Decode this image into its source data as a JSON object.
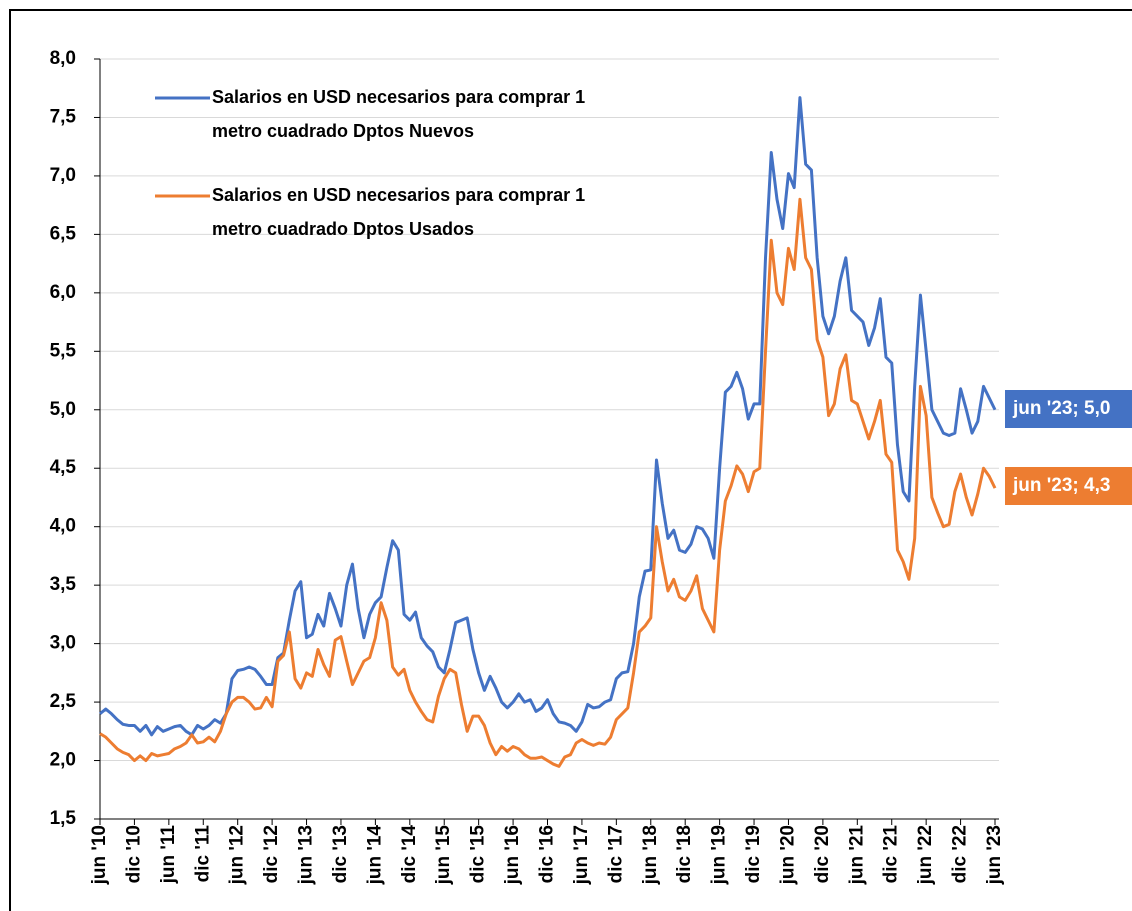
{
  "chart_data": {
    "type": "line",
    "categories": [
      "jun '10",
      null,
      null,
      null,
      null,
      null,
      "dic '10",
      null,
      null,
      null,
      null,
      null,
      "jun '11",
      null,
      null,
      null,
      null,
      null,
      "dic '11",
      null,
      null,
      null,
      null,
      null,
      "jun '12",
      null,
      null,
      null,
      null,
      null,
      "dic '12",
      null,
      null,
      null,
      null,
      null,
      "jun '13",
      null,
      null,
      null,
      null,
      null,
      "dic '13",
      null,
      null,
      null,
      null,
      null,
      "jun '14",
      null,
      null,
      null,
      null,
      null,
      "dic '14",
      null,
      null,
      null,
      null,
      null,
      "jun '15",
      null,
      null,
      null,
      null,
      null,
      "dic '15",
      null,
      null,
      null,
      null,
      null,
      "jun '16",
      null,
      null,
      null,
      null,
      null,
      "dic '16",
      null,
      null,
      null,
      null,
      null,
      "jun '17",
      null,
      null,
      null,
      null,
      null,
      "dic '17",
      null,
      null,
      null,
      null,
      null,
      "jun '18",
      null,
      null,
      null,
      null,
      null,
      "dic '18",
      null,
      null,
      null,
      null,
      null,
      "jun '19",
      null,
      null,
      null,
      null,
      null,
      "dic '19",
      null,
      null,
      null,
      null,
      null,
      "jun '20",
      null,
      null,
      null,
      null,
      null,
      "dic '20",
      null,
      null,
      null,
      null,
      null,
      "jun '21",
      null,
      null,
      null,
      null,
      null,
      "dic '21",
      null,
      null,
      null,
      null,
      null,
      "jun '22",
      null,
      null,
      null,
      null,
      null,
      "dic '22",
      null,
      null,
      null,
      null,
      null,
      "jun '23"
    ],
    "series": [
      {
        "name": "Salarios en USD necesarios para comprar 1 metro cuadrado Dptos Nuevos",
        "color": "#4472c4",
        "end_label": "jun '23; 5,0",
        "values": [
          2.4,
          2.44,
          2.4,
          2.35,
          2.31,
          2.3,
          2.3,
          2.25,
          2.3,
          2.22,
          2.29,
          2.25,
          2.27,
          2.29,
          2.3,
          2.25,
          2.22,
          2.3,
          2.27,
          2.3,
          2.35,
          2.32,
          2.4,
          2.7,
          2.77,
          2.78,
          2.8,
          2.78,
          2.72,
          2.65,
          2.65,
          2.88,
          2.92,
          3.2,
          3.45,
          3.53,
          3.05,
          3.08,
          3.25,
          3.15,
          3.43,
          3.3,
          3.15,
          3.5,
          3.68,
          3.3,
          3.05,
          3.25,
          3.35,
          3.4,
          3.65,
          3.88,
          3.8,
          3.25,
          3.2,
          3.27,
          3.05,
          2.98,
          2.93,
          2.8,
          2.75,
          2.95,
          3.18,
          3.2,
          3.22,
          2.95,
          2.75,
          2.6,
          2.72,
          2.62,
          2.5,
          2.45,
          2.5,
          2.57,
          2.5,
          2.52,
          2.42,
          2.45,
          2.52,
          2.4,
          2.33,
          2.32,
          2.3,
          2.25,
          2.33,
          2.48,
          2.45,
          2.46,
          2.5,
          2.52,
          2.7,
          2.75,
          2.76,
          3.0,
          3.4,
          3.62,
          3.63,
          4.57,
          4.2,
          3.9,
          3.97,
          3.8,
          3.78,
          3.85,
          4.0,
          3.98,
          3.9,
          3.73,
          4.5,
          5.15,
          5.2,
          5.32,
          5.18,
          4.92,
          5.05,
          5.05,
          6.3,
          7.2,
          6.8,
          6.55,
          7.02,
          6.9,
          7.67,
          7.1,
          7.05,
          6.3,
          5.8,
          5.65,
          5.8,
          6.1,
          6.3,
          5.85,
          5.8,
          5.75,
          5.55,
          5.7,
          5.95,
          5.45,
          5.4,
          4.7,
          4.3,
          4.22,
          5.2,
          5.98,
          5.5,
          5.0,
          4.9,
          4.8,
          4.78,
          4.8,
          5.18,
          5.0,
          4.8,
          4.9,
          5.2,
          5.1,
          5.0
        ]
      },
      {
        "name": "Salarios en USD necesarios para comprar 1 metro cuadrado Dptos Usados",
        "color": "#ed7d31",
        "end_label": "jun '23; 4,3",
        "values": [
          2.23,
          2.2,
          2.15,
          2.1,
          2.07,
          2.05,
          2.0,
          2.04,
          2.0,
          2.06,
          2.04,
          2.05,
          2.06,
          2.1,
          2.12,
          2.15,
          2.22,
          2.15,
          2.16,
          2.2,
          2.16,
          2.25,
          2.4,
          2.5,
          2.54,
          2.54,
          2.5,
          2.44,
          2.45,
          2.54,
          2.46,
          2.85,
          2.9,
          3.1,
          2.7,
          2.62,
          2.75,
          2.72,
          2.95,
          2.82,
          2.72,
          3.03,
          3.06,
          2.85,
          2.65,
          2.75,
          2.85,
          2.88,
          3.05,
          3.35,
          3.2,
          2.8,
          2.73,
          2.78,
          2.6,
          2.5,
          2.42,
          2.35,
          2.33,
          2.55,
          2.7,
          2.78,
          2.75,
          2.48,
          2.25,
          2.38,
          2.38,
          2.3,
          2.15,
          2.05,
          2.12,
          2.08,
          2.12,
          2.1,
          2.05,
          2.02,
          2.02,
          2.03,
          2.0,
          1.97,
          1.95,
          2.03,
          2.05,
          2.15,
          2.18,
          2.15,
          2.13,
          2.15,
          2.14,
          2.2,
          2.35,
          2.4,
          2.45,
          2.75,
          3.1,
          3.15,
          3.22,
          4.0,
          3.7,
          3.45,
          3.55,
          3.4,
          3.37,
          3.45,
          3.58,
          3.3,
          3.2,
          3.1,
          3.8,
          4.22,
          4.35,
          4.52,
          4.45,
          4.3,
          4.47,
          4.5,
          5.5,
          6.45,
          6.0,
          5.9,
          6.38,
          6.2,
          6.8,
          6.3,
          6.2,
          5.6,
          5.45,
          4.95,
          5.05,
          5.35,
          5.47,
          5.08,
          5.05,
          4.9,
          4.75,
          4.9,
          5.08,
          4.62,
          4.55,
          3.8,
          3.7,
          3.55,
          3.9,
          5.2,
          4.95,
          4.25,
          4.12,
          4.0,
          4.02,
          4.3,
          4.45,
          4.25,
          4.1,
          4.28,
          4.5,
          4.43,
          4.33
        ]
      }
    ],
    "ylim": [
      1.5,
      8.0
    ],
    "yticks": [
      {
        "value": 1.5,
        "label": "1,5"
      },
      {
        "value": 2.0,
        "label": "2,0"
      },
      {
        "value": 2.5,
        "label": "2,5"
      },
      {
        "value": 3.0,
        "label": "3,0"
      },
      {
        "value": 3.5,
        "label": "3,5"
      },
      {
        "value": 4.0,
        "label": "4,0"
      },
      {
        "value": 4.5,
        "label": "4,5"
      },
      {
        "value": 5.0,
        "label": "5,0"
      },
      {
        "value": 5.5,
        "label": "5,5"
      },
      {
        "value": 6.0,
        "label": "6,0"
      },
      {
        "value": 6.5,
        "label": "6,5"
      },
      {
        "value": 7.0,
        "label": "7,0"
      },
      {
        "value": 7.5,
        "label": "7,5"
      },
      {
        "value": 8.0,
        "label": "8,0"
      }
    ],
    "grid": true
  }
}
